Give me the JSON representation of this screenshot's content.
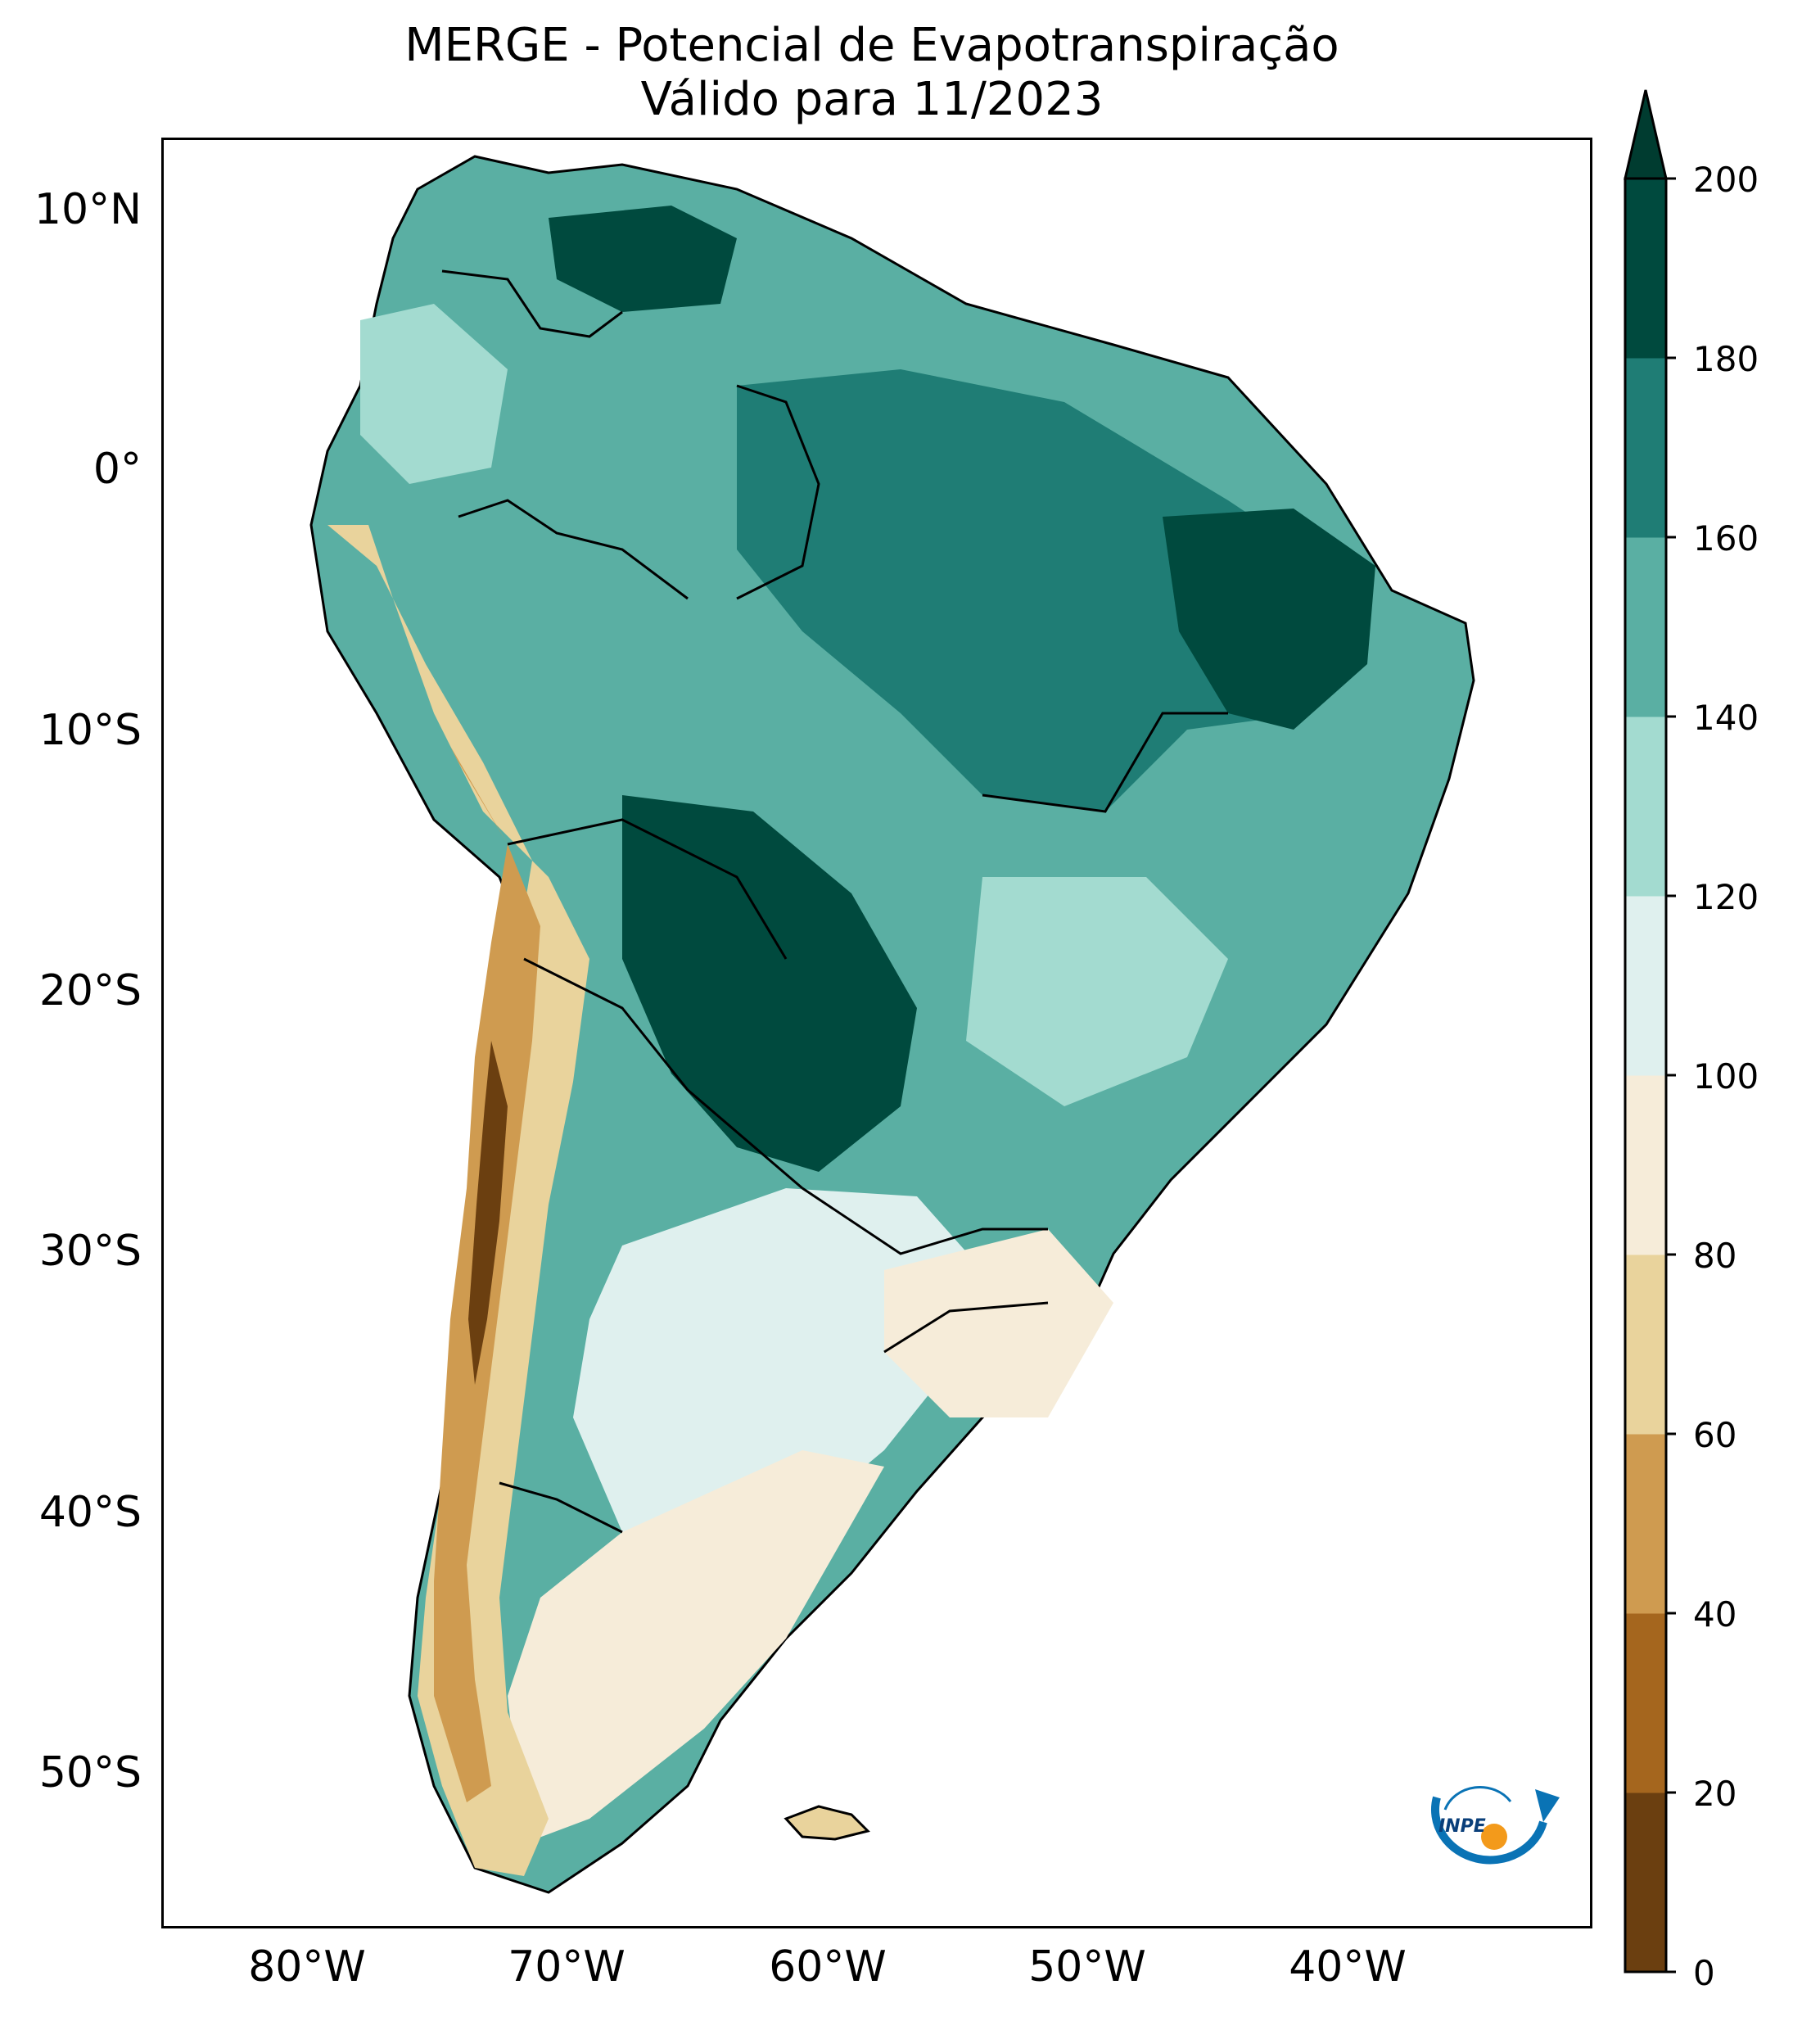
{
  "title": {
    "line1": "MERGE - Potencial de Evapotranspiração",
    "line2": "Válido para 11/2023"
  },
  "lat_labels": [
    "10°N",
    "0°",
    "10°S",
    "20°S",
    "30°S",
    "40°S",
    "50°S"
  ],
  "lon_labels": [
    "80°W",
    "70°W",
    "60°W",
    "50°W",
    "40°W"
  ],
  "colorbar": {
    "ticks": [
      "0",
      "20",
      "40",
      "60",
      "80",
      "100",
      "120",
      "140",
      "160",
      "180",
      "200"
    ],
    "colors": [
      "#6b3f10",
      "#a5661e",
      "#cf9b50",
      "#e9d39c",
      "#f6ecd9",
      "#dff0ee",
      "#a3dbd0",
      "#5aafa3",
      "#1f7d75",
      "#004a3e"
    ],
    "extend_max_color": "#003c30"
  },
  "logo": {
    "text": "INPE"
  },
  "colors": {
    "ocean": "#ffffff",
    "border": "#000000"
  }
}
